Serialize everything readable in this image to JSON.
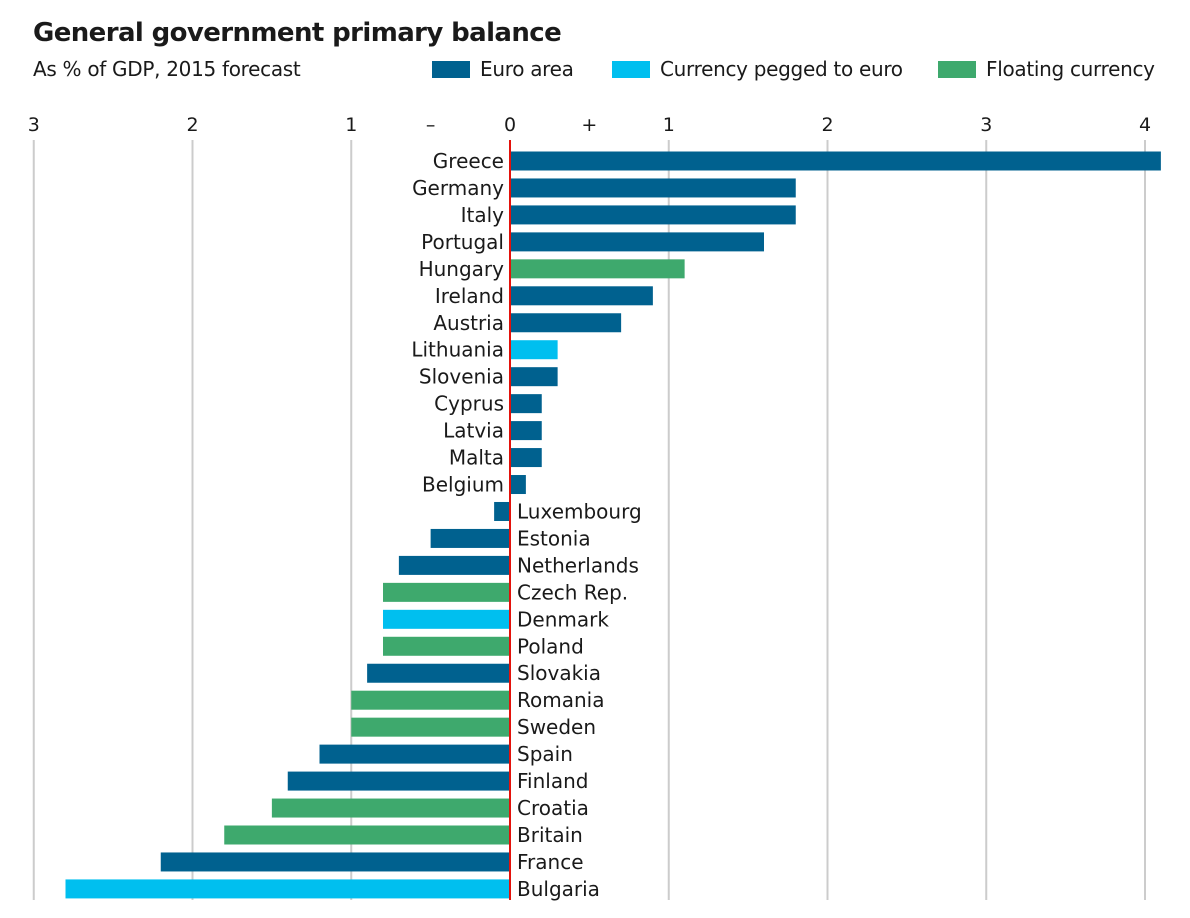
{
  "chart_data": {
    "type": "bar",
    "orientation": "horizontal",
    "title": "General government primary balance",
    "subtitle": "As % of GDP, 2015 forecast",
    "xlim": [
      -3,
      4.1
    ],
    "x_ticks": [
      {
        "value": -3,
        "label": "3"
      },
      {
        "value": -2,
        "label": "2"
      },
      {
        "value": -1,
        "label": "1"
      },
      {
        "value": -0.5,
        "label": "–"
      },
      {
        "value": 0,
        "label": "0"
      },
      {
        "value": 0.5,
        "label": "+"
      },
      {
        "value": 1,
        "label": "1"
      },
      {
        "value": 2,
        "label": "2"
      },
      {
        "value": 3,
        "label": "3"
      },
      {
        "value": 4,
        "label": "4"
      }
    ],
    "grid_values": [
      -3,
      -2,
      -1,
      1,
      2,
      3,
      4
    ],
    "legend": [
      {
        "key": "euro",
        "label": "Euro area",
        "color": "#00618f"
      },
      {
        "key": "pegged",
        "label": "Currency pegged to euro",
        "color": "#00bfef"
      },
      {
        "key": "floating",
        "label": "Floating currency",
        "color": "#3ea96d"
      }
    ],
    "zero_line_color": "#e3120b",
    "grid_color": "#cccccc",
    "bars": [
      {
        "country": "Greece",
        "value": 4.1,
        "group": "euro"
      },
      {
        "country": "Germany",
        "value": 1.8,
        "group": "euro"
      },
      {
        "country": "Italy",
        "value": 1.8,
        "group": "euro"
      },
      {
        "country": "Portugal",
        "value": 1.6,
        "group": "euro"
      },
      {
        "country": "Hungary",
        "value": 1.1,
        "group": "floating"
      },
      {
        "country": "Ireland",
        "value": 0.9,
        "group": "euro"
      },
      {
        "country": "Austria",
        "value": 0.7,
        "group": "euro"
      },
      {
        "country": "Lithuania",
        "value": 0.3,
        "group": "pegged"
      },
      {
        "country": "Slovenia",
        "value": 0.3,
        "group": "euro"
      },
      {
        "country": "Cyprus",
        "value": 0.2,
        "group": "euro"
      },
      {
        "country": "Latvia",
        "value": 0.2,
        "group": "euro"
      },
      {
        "country": "Malta",
        "value": 0.2,
        "group": "euro"
      },
      {
        "country": "Belgium",
        "value": 0.1,
        "group": "euro"
      },
      {
        "country": "Luxembourg",
        "value": -0.1,
        "group": "euro"
      },
      {
        "country": "Estonia",
        "value": -0.5,
        "group": "euro"
      },
      {
        "country": "Netherlands",
        "value": -0.7,
        "group": "euro"
      },
      {
        "country": "Czech Rep.",
        "value": -0.8,
        "group": "floating"
      },
      {
        "country": "Denmark",
        "value": -0.8,
        "group": "pegged"
      },
      {
        "country": "Poland",
        "value": -0.8,
        "group": "floating"
      },
      {
        "country": "Slovakia",
        "value": -0.9,
        "group": "euro"
      },
      {
        "country": "Romania",
        "value": -1.0,
        "group": "floating"
      },
      {
        "country": "Sweden",
        "value": -1.0,
        "group": "floating"
      },
      {
        "country": "Spain",
        "value": -1.2,
        "group": "euro"
      },
      {
        "country": "Finland",
        "value": -1.4,
        "group": "euro"
      },
      {
        "country": "Croatia",
        "value": -1.5,
        "group": "floating"
      },
      {
        "country": "Britain",
        "value": -1.8,
        "group": "floating"
      },
      {
        "country": "France",
        "value": -2.2,
        "group": "euro"
      },
      {
        "country": "Bulgaria",
        "value": -2.8,
        "group": "pegged"
      }
    ]
  }
}
